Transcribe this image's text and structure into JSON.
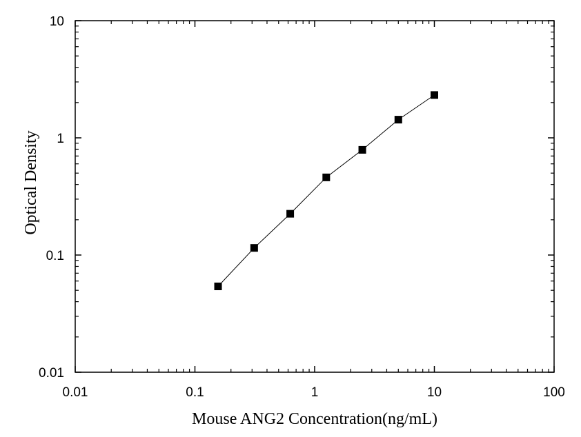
{
  "chart_data": {
    "type": "scatter",
    "xlabel": "Mouse ANG2 Concentration(ng/mL)",
    "ylabel": "Optical Density",
    "xscale": "log",
    "yscale": "log",
    "xlim": [
      0.01,
      100
    ],
    "ylim": [
      0.01,
      10
    ],
    "xticks": [
      0.01,
      0.1,
      1,
      10,
      100
    ],
    "xtick_labels": [
      "0.01",
      "0.1",
      "1",
      "10",
      "100"
    ],
    "yticks": [
      0.01,
      0.1,
      1,
      10
    ],
    "ytick_labels": [
      "0.01",
      "0.1",
      "1",
      "10"
    ],
    "grid": false,
    "series": [
      {
        "marker": "square",
        "line": true,
        "color": "#000000",
        "x": [
          0.156,
          0.3125,
          0.625,
          1.25,
          2.5,
          5,
          10
        ],
        "y": [
          0.054,
          0.115,
          0.225,
          0.46,
          0.79,
          1.43,
          2.32
        ]
      }
    ]
  }
}
